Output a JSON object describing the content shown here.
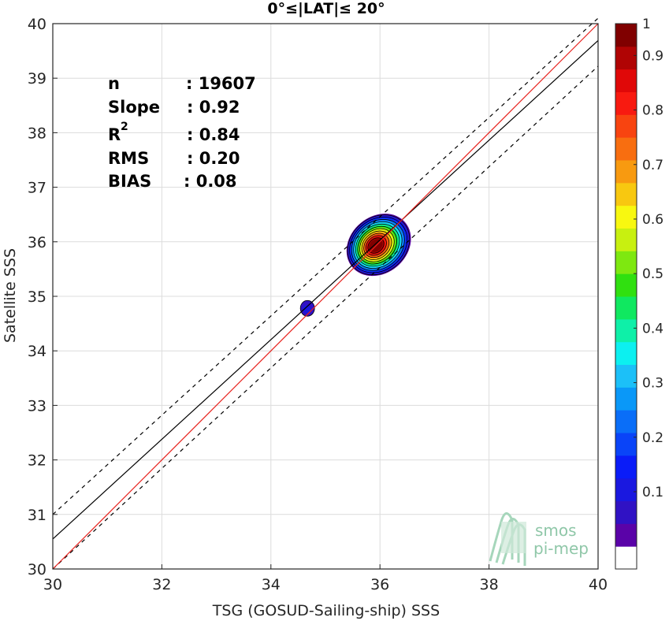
{
  "chart_data": {
    "type": "scatter",
    "title": "0°≤|LAT|≤ 20°",
    "xlabel": "TSG (GOSUD-Sailing-ship) SSS",
    "ylabel": "Satellite SSS",
    "xlim": [
      30,
      40
    ],
    "ylim": [
      30,
      40
    ],
    "xticks": [
      "30",
      "32",
      "34",
      "36",
      "38",
      "40"
    ],
    "yticks": [
      "30",
      "31",
      "32",
      "33",
      "34",
      "35",
      "36",
      "37",
      "38",
      "39",
      "40"
    ],
    "grid": true,
    "stats": {
      "n_label": "n",
      "n_value": ": 19607",
      "slope_label": "Slope",
      "slope_value": ": 0.92",
      "r2_label": "R",
      "r2_sup": "2",
      "r2_value": ": 0.84",
      "rms_label": "RMS",
      "rms_value": ": 0.20",
      "bias_label": "BIAS",
      "bias_value": ": 0.08"
    },
    "lines": {
      "one_to_one": {
        "color": "#e8211c",
        "from": [
          30,
          30
        ],
        "to": [
          40,
          40
        ]
      },
      "fit": {
        "color": "#000000",
        "from": [
          30,
          30.55
        ],
        "to": [
          40,
          39.69
        ]
      },
      "upper": {
        "color": "#000000",
        "style": "dashed",
        "from": [
          30,
          31.0
        ],
        "to": [
          40,
          40.1
        ]
      },
      "lower": {
        "color": "#000000",
        "style": "dashed",
        "from": [
          30,
          30.0
        ],
        "to": [
          40,
          39.22
        ]
      }
    },
    "density": {
      "main_center": [
        35.92,
        35.93
      ],
      "secondary_center": [
        34.67,
        34.78
      ],
      "levels": [
        0.05,
        0.1,
        0.15,
        0.2,
        0.3,
        0.4,
        0.5,
        0.6,
        0.7,
        0.8,
        0.9,
        1.0
      ]
    },
    "colorbar": {
      "min": 0,
      "max": 1,
      "ticks": [
        "0.1",
        "0.2",
        "0.3",
        "0.4",
        "0.5",
        "0.6",
        "0.7",
        "0.8",
        "0.9",
        "1"
      ],
      "tick_values": [
        0.1,
        0.2,
        0.3,
        0.4,
        0.5,
        0.6,
        0.7,
        0.8,
        0.9,
        1.0
      ],
      "colors": [
        "#ffffff",
        "#5a03a8",
        "#3012c4",
        "#1a18e0",
        "#0a1cf8",
        "#0a44f8",
        "#0a6ef8",
        "#0a98f8",
        "#1cc0f8",
        "#0cf0f0",
        "#0ef0a8",
        "#10e860",
        "#30e010",
        "#7ee810",
        "#c8f010",
        "#f8f810",
        "#f8c810",
        "#f89a10",
        "#f86e10",
        "#f84410",
        "#f81a10",
        "#e00808",
        "#b00404",
        "#800000"
      ]
    }
  },
  "logo": {
    "line1": "smos",
    "line2": "pi-mep"
  }
}
